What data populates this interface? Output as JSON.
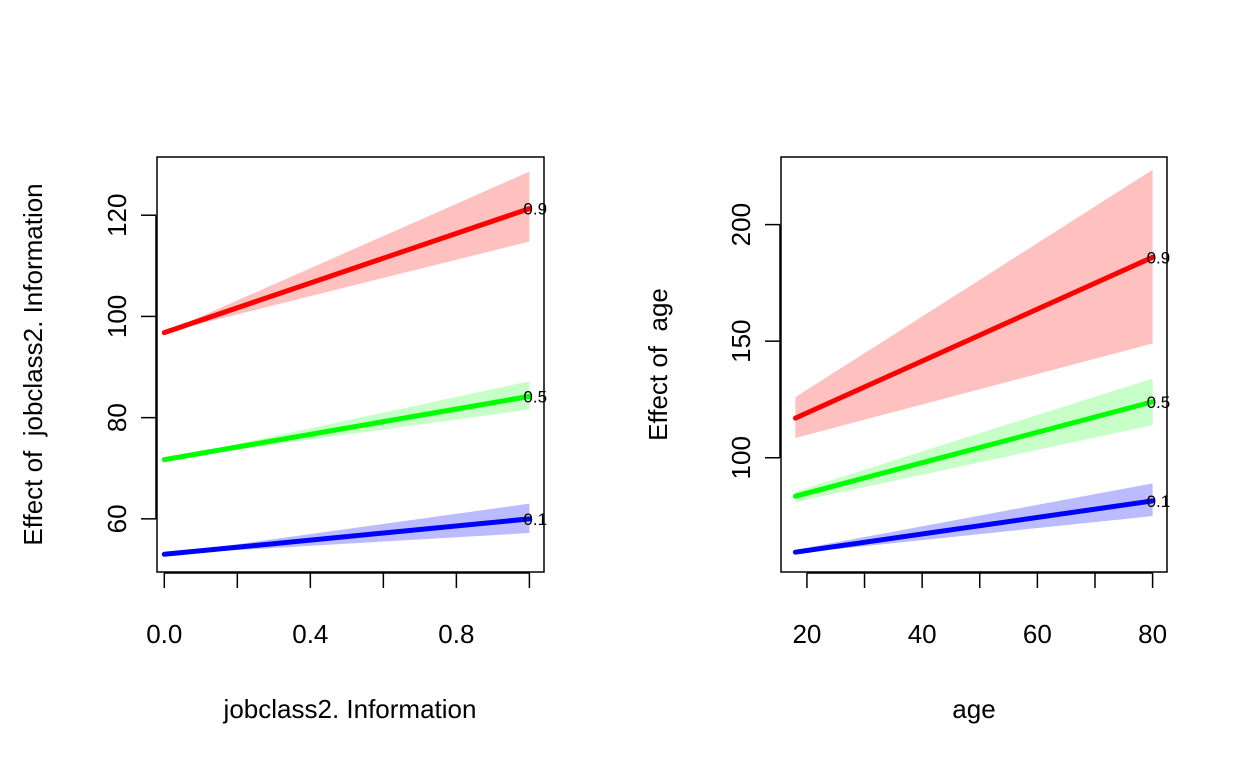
{
  "chart_data": [
    {
      "type": "line",
      "xlabel": "jobclass2. Information",
      "ylabel": "Effect of  jobclass2. Information",
      "xlim": [
        -0.02,
        1.04
      ],
      "ylim": [
        49.5,
        131.5
      ],
      "xticks": [
        0.0,
        0.2,
        0.4,
        0.6,
        0.8,
        1.0
      ],
      "xtick_labels": [
        "0.0",
        "",
        "0.4",
        "",
        "0.8",
        ""
      ],
      "yticks": [
        60,
        80,
        100,
        120
      ],
      "ytick_labels": [
        "60",
        "80",
        "100",
        "120"
      ],
      "grid": false,
      "series": [
        {
          "name": "0.1",
          "color": "#0000ff",
          "band_color": "#bbbbff",
          "x": [
            0,
            1
          ],
          "values": [
            53.0,
            60.0
          ],
          "lower": [
            53.0,
            57.2
          ],
          "upper": [
            53.0,
            63.0
          ]
        },
        {
          "name": "0.5",
          "color": "#00ff00",
          "band_color": "#c8ffc8",
          "x": [
            0,
            1
          ],
          "values": [
            71.7,
            84.2
          ],
          "lower": [
            71.7,
            81.6
          ],
          "upper": [
            71.7,
            87.2
          ]
        },
        {
          "name": "0.9",
          "color": "#ff0000",
          "band_color": "#ffc0c0",
          "x": [
            0,
            1
          ],
          "values": [
            96.8,
            121.3
          ],
          "lower": [
            96.8,
            114.8
          ],
          "upper": [
            96.8,
            128.6
          ]
        }
      ]
    },
    {
      "type": "line",
      "xlabel": "age",
      "ylabel": "Effect of  age",
      "xlim": [
        15.5,
        82.5
      ],
      "ylim": [
        51,
        229
      ],
      "xticks": [
        20,
        30,
        40,
        50,
        60,
        70,
        80
      ],
      "xtick_labels": [
        "20",
        "",
        "40",
        "",
        "60",
        "",
        "80"
      ],
      "yticks": [
        100,
        150,
        200
      ],
      "ytick_labels": [
        "100",
        "150",
        "200"
      ],
      "grid": false,
      "series": [
        {
          "name": "0.1",
          "color": "#0000ff",
          "band_color": "#bbbbff",
          "x": [
            18,
            80
          ],
          "values": [
            59.5,
            81.5
          ],
          "lower": [
            59.0,
            75.0
          ],
          "upper": [
            60.5,
            89.0
          ]
        },
        {
          "name": "0.5",
          "color": "#00ff00",
          "band_color": "#c8ffc8",
          "x": [
            18,
            80
          ],
          "values": [
            83.5,
            124.0
          ],
          "lower": [
            81.0,
            114.0
          ],
          "upper": [
            85.5,
            134.0
          ]
        },
        {
          "name": "0.9",
          "color": "#ff0000",
          "band_color": "#ffc0c0",
          "x": [
            18,
            80
          ],
          "values": [
            117.0,
            186.0
          ],
          "lower": [
            108.5,
            149.0
          ],
          "upper": [
            126.0,
            223.5
          ]
        }
      ]
    }
  ]
}
